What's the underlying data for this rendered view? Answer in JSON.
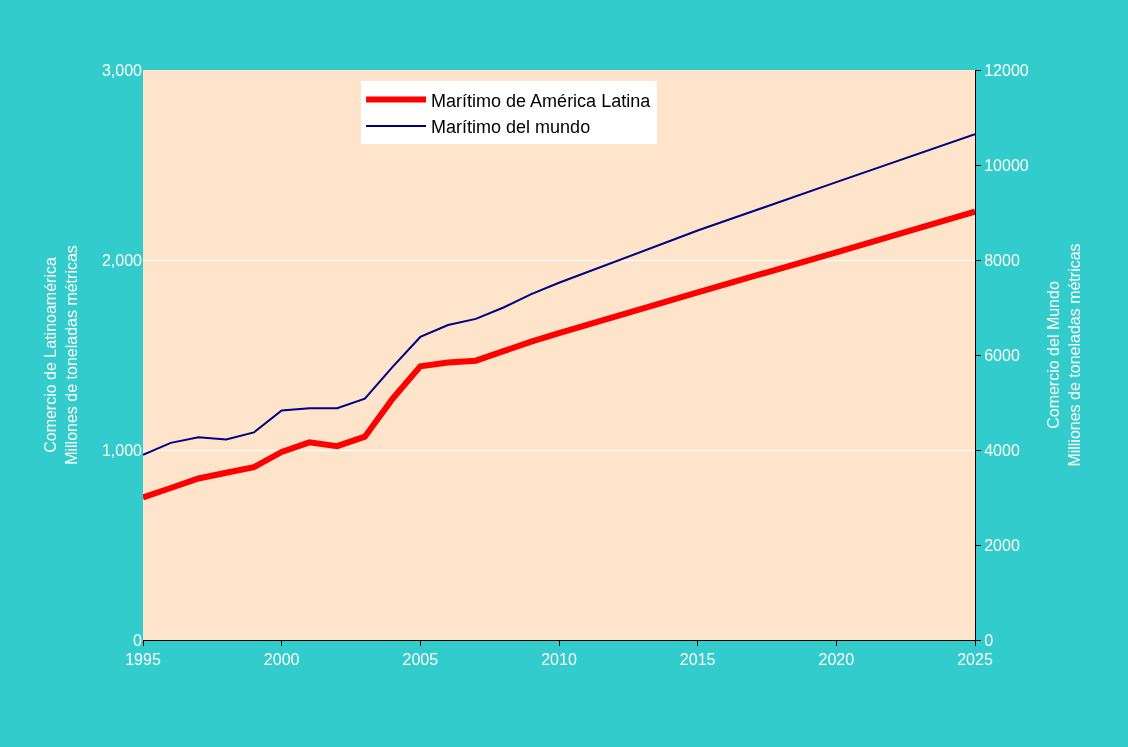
{
  "chart_data": {
    "type": "line",
    "xlabel": null,
    "ylabel": "Comercio de Latinoamérica\nMillones de toneladas métricas",
    "y2label": "Comercio del Mundo\nMilliones de toneladas métricas",
    "series": [
      {
        "name": "Marítimo de América Latina",
        "color": "#ff0000",
        "x": [
          1995,
          1996,
          1997,
          1998,
          1999,
          2000,
          2001,
          2002,
          2003,
          2004,
          2005,
          2006,
          2007,
          2008,
          2009,
          2010,
          2015,
          2020,
          2025
        ],
        "values": [
          750,
          800,
          850,
          880,
          910,
          990,
          1040,
          1020,
          1070,
          1270,
          1440,
          1460,
          1470,
          1520,
          1570,
          1615,
          1830,
          2040,
          2255
        ]
      },
      {
        "name": "Marítimo del mundo",
        "color": "#000080",
        "axis": "y2",
        "x": [
          1995,
          1996,
          1997,
          1998,
          1999,
          2000,
          2001,
          2002,
          2003,
          2004,
          2005,
          2006,
          2007,
          2008,
          2009,
          2010,
          2015,
          2020,
          2025
        ],
        "values": [
          3900,
          4150,
          4270,
          4220,
          4370,
          4830,
          4880,
          4880,
          5080,
          5750,
          6380,
          6630,
          6760,
          7000,
          7280,
          7520,
          8620,
          9640,
          10650
        ]
      }
    ],
    "xlim": [
      1995,
      2025
    ],
    "xticks": [
      1995,
      2000,
      2005,
      2010,
      2015,
      2020,
      2025
    ],
    "ylim": [
      0,
      3000
    ],
    "yticks": [
      0,
      {
        "value": 1000,
        "label": "1,000"
      },
      {
        "value": 2000,
        "label": "2,000"
      },
      {
        "value": 3000,
        "label": "3,000"
      }
    ],
    "y2lim": [
      0,
      12000
    ],
    "y2ticks": [
      0,
      2000,
      4000,
      6000,
      8000,
      10000,
      12000
    ],
    "grid": "y",
    "legend": "top center",
    "marker": "none",
    "line_style": "solid"
  }
}
